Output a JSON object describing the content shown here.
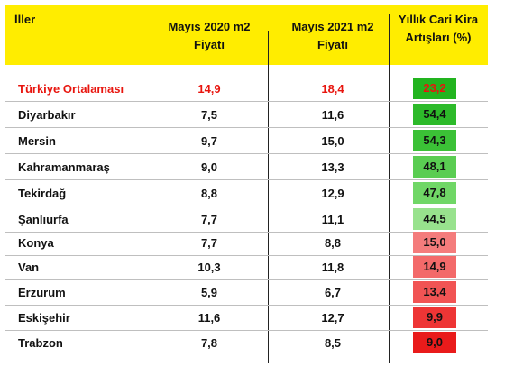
{
  "header": {
    "col1": "İller",
    "col2_line1": "Mayıs 2020 m2",
    "col2_line2": "Fiyatı",
    "col3_line1": "Mayıs 2021 m2",
    "col3_line2": "Fiyatı",
    "col4_line1": "Yıllık Cari Kira",
    "col4_line2": "Artışları (%)"
  },
  "colors": {
    "header_bg": "#ffed00",
    "average_text": "#e8150e"
  },
  "rows": [
    {
      "name": "Türkiye Ortalaması",
      "v2020": "14,9",
      "v2021": "18,4",
      "increase": "23,2",
      "box_color": "#22b41f",
      "text_color": "#e8150e"
    },
    {
      "name": "Diyarbakır",
      "v2020": "7,5",
      "v2021": "11,6",
      "increase": "54,4",
      "box_color": "#2dba2a",
      "text_color": "#111111"
    },
    {
      "name": "Mersin",
      "v2020": "9,7",
      "v2021": "15,0",
      "increase": "54,3",
      "box_color": "#3bc136",
      "text_color": "#111111"
    },
    {
      "name": "Kahramanmaraş",
      "v2020": "9,0",
      "v2021": "13,3",
      "increase": "48,1",
      "box_color": "#5acd52",
      "text_color": "#111111"
    },
    {
      "name": "Tekirdağ",
      "v2020": "8,8",
      "v2021": "12,9",
      "increase": "47,8",
      "box_color": "#70d766",
      "text_color": "#111111"
    },
    {
      "name": "Şanlıurfa",
      "v2020": "7,7",
      "v2021": "11,1",
      "increase": "44,5",
      "box_color": "#98e28d",
      "text_color": "#111111"
    },
    {
      "name": "Konya",
      "v2020": "7,7",
      "v2021": "8,8",
      "increase": "15,0",
      "box_color": "#f47c7c",
      "text_color": "#111111"
    },
    {
      "name": "Van",
      "v2020": "10,3",
      "v2021": "11,8",
      "increase": "14,9",
      "box_color": "#f36a6a",
      "text_color": "#111111"
    },
    {
      "name": "Erzurum",
      "v2020": "5,9",
      "v2021": "6,7",
      "increase": "13,4",
      "box_color": "#f15454",
      "text_color": "#111111"
    },
    {
      "name": "Eskişehir",
      "v2020": "11,6",
      "v2021": "12,7",
      "increase": "9,9",
      "box_color": "#ee3535",
      "text_color": "#111111"
    },
    {
      "name": "Trabzon",
      "v2020": "7,8",
      "v2021": "8,5",
      "increase": "9,0",
      "box_color": "#e91b1b",
      "text_color": "#111111"
    }
  ]
}
